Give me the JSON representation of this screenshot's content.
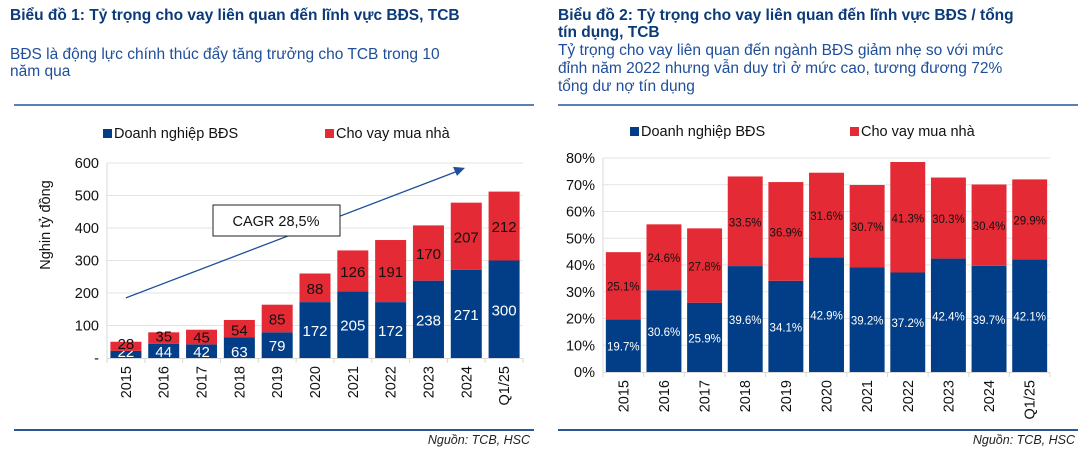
{
  "colors": {
    "blue": "#023e87",
    "red": "#e42a34",
    "title": "#0b3a7a",
    "subtitle": "#1f4e9a",
    "grid": "#e3e3e3",
    "arrow": "#1f4e9a"
  },
  "chart_data": [
    {
      "type": "bar",
      "stacked": true,
      "title": "Biểu đồ 1: Tỷ trọng cho vay liên quan đến lĩnh vực BĐS, TCB",
      "subtitle": "BĐS là động lực chính thúc đẩy tăng trưởng cho TCB trong 10 năm qua",
      "subtitle_lines": [
        "BĐS là động lực chính thúc đẩy tăng trưởng cho TCB trong 10",
        "năm qua"
      ],
      "ylabel": "Nghin tỷ đồng",
      "xlabel": "",
      "ylim": [
        0,
        600
      ],
      "yticks": [
        0,
        100,
        200,
        300,
        400,
        500,
        600
      ],
      "ytick_labels": [
        "-",
        "100",
        "200",
        "300",
        "400",
        "500",
        "600"
      ],
      "grid": true,
      "legend_position": "top",
      "categories": [
        "2015",
        "2016",
        "2017",
        "2018",
        "2019",
        "2020",
        "2021",
        "2022",
        "2023",
        "2024",
        "Q1/25"
      ],
      "series": [
        {
          "name": "Doanh nghiệp BĐS",
          "color": "#023e87",
          "values": [
            22,
            44,
            42,
            63,
            79,
            172,
            205,
            172,
            238,
            271,
            300
          ]
        },
        {
          "name": "Cho vay mua nhà",
          "color": "#e42a34",
          "values": [
            28,
            35,
            45,
            54,
            85,
            88,
            126,
            191,
            170,
            207,
            212
          ]
        }
      ],
      "annotations": [
        {
          "type": "arrow",
          "text": "",
          "direction": "up-right",
          "from_value": {
            "category": "2015",
            "y": 185
          },
          "to_value": {
            "category": "Q1/25",
            "y": 585
          }
        },
        {
          "type": "textbox",
          "text": "CAGR 28,5%"
        }
      ],
      "source": "Nguồn: TCB, HSC"
    },
    {
      "type": "bar",
      "stacked": true,
      "title": "Biểu đồ 2: Tỷ trọng cho vay liên quan đến lĩnh vực BĐS / tổng tín dụng, TCB",
      "title_lines": [
        "Biểu đồ 2: Tỷ trọng cho vay liên quan đến lĩnh vực BĐS / tổng",
        "tín dụng, TCB"
      ],
      "subtitle": "Tỷ trọng cho vay liên quan đến ngành BĐS giảm nhẹ so với mức đỉnh năm 2022 nhưng vẫn duy trì ở mức cao, tương đương 72% tổng dư nợ tín dụng",
      "subtitle_lines": [
        "Tỷ trọng cho vay liên quan đến ngành BĐS giảm nhẹ so với mức",
        "đỉnh năm 2022 nhưng vẫn duy trì ở mức cao, tương đương 72%",
        "tổng dư nợ tín dụng"
      ],
      "ylabel": "",
      "xlabel": "",
      "ylim": [
        0,
        80
      ],
      "yticks": [
        0,
        10,
        20,
        30,
        40,
        50,
        60,
        70,
        80
      ],
      "ytick_labels": [
        "0%",
        "10%",
        "20%",
        "30%",
        "40%",
        "50%",
        "60%",
        "70%",
        "80%"
      ],
      "grid": true,
      "legend_position": "top",
      "categories": [
        "2015",
        "2016",
        "2017",
        "2018",
        "2019",
        "2020",
        "2021",
        "2022",
        "2023",
        "2024",
        "Q1/25"
      ],
      "series": [
        {
          "name": "Doanh nghiệp BĐS",
          "color": "#023e87",
          "values": [
            19.7,
            30.6,
            25.9,
            39.6,
            34.1,
            42.9,
            39.2,
            37.2,
            42.4,
            39.7,
            42.1
          ],
          "labels": [
            "19.7%",
            "30.6%",
            "25.9%",
            "39.6%",
            "34.1%",
            "42.9%",
            "39.2%",
            "37.2%",
            "42.4%",
            "39.7%",
            "42.1%"
          ]
        },
        {
          "name": "Cho vay mua nhà",
          "color": "#e42a34",
          "values": [
            25.1,
            24.6,
            27.8,
            33.5,
            36.9,
            31.6,
            30.7,
            41.3,
            30.3,
            30.4,
            29.9
          ],
          "labels": [
            "25.1%",
            "24.6%",
            "27.8%",
            "33.5%",
            "36.9%",
            "31.6%",
            "30.7%",
            "41.3%",
            "30.3%",
            "30.4%",
            "29.9%"
          ]
        }
      ],
      "source": "Nguồn: TCB, HSC"
    }
  ]
}
